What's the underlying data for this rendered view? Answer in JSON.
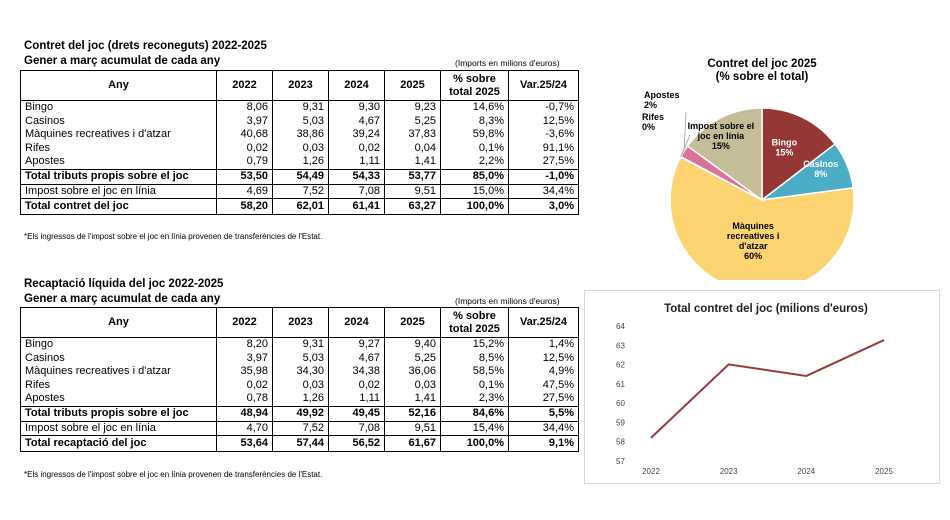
{
  "table1": {
    "title": "Contret del joc (drets reconeguts) 2022-2025",
    "subtitle": "Gener a març acumulat de cada any",
    "units": "(Imports en milions d'euros)",
    "headers": [
      "Any",
      "2022",
      "2023",
      "2024",
      "2025",
      "% sobre total 2025",
      "Var.25/24"
    ],
    "rows": [
      {
        "label": "Bingo",
        "v": [
          "8,06",
          "9,31",
          "9,30",
          "9,23"
        ],
        "pct": "14,6%",
        "var": "-0,7%"
      },
      {
        "label": "Casinos",
        "v": [
          "3,97",
          "5,03",
          "4,67",
          "5,25"
        ],
        "pct": "8,3%",
        "var": "12,5%"
      },
      {
        "label": "Màquines recreatives i d'atzar",
        "v": [
          "40,68",
          "38,86",
          "39,24",
          "37,83"
        ],
        "pct": "59,8%",
        "var": "-3,6%"
      },
      {
        "label": "Rifes",
        "v": [
          "0,02",
          "0,03",
          "0,02",
          "0,04"
        ],
        "pct": "0,1%",
        "var": "91,1%"
      },
      {
        "label": "Apostes",
        "v": [
          "0,79",
          "1,26",
          "1,11",
          "1,41"
        ],
        "pct": "2,2%",
        "var": "27,5%"
      },
      {
        "label": "Total tributs propis sobre el joc",
        "v": [
          "53,50",
          "54,49",
          "54,33",
          "53,77"
        ],
        "pct": "85,0%",
        "var": "-1,0%"
      },
      {
        "label": "Impost sobre el joc en línia",
        "v": [
          "4,69",
          "7,52",
          "7,08",
          "9,51"
        ],
        "pct": "15,0%",
        "var": "34,4%"
      },
      {
        "label": "Total contret del joc",
        "v": [
          "58,20",
          "62,01",
          "61,41",
          "63,27"
        ],
        "pct": "100,0%",
        "var": "3,0%"
      }
    ],
    "note": "*Els ingressos de l'impost sobre el joc en línia provenen de transferències de l'Estat."
  },
  "table2": {
    "title": "Recaptació líquida del joc 2022-2025",
    "subtitle": "Gener a març acumulat de cada any",
    "units": "(Imports en milions d'euros)",
    "headers": [
      "Any",
      "2022",
      "2023",
      "2024",
      "2025",
      "% sobre total 2025",
      "Var.25/24"
    ],
    "rows": [
      {
        "label": "Bingo",
        "v": [
          "8,20",
          "9,31",
          "9,27",
          "9,40"
        ],
        "pct": "15,2%",
        "var": "1,4%"
      },
      {
        "label": "Casinos",
        "v": [
          "3,97",
          "5,03",
          "4,67",
          "5,25"
        ],
        "pct": "8,5%",
        "var": "12,5%"
      },
      {
        "label": "Màquines recreatives i d'atzar",
        "v": [
          "35,98",
          "34,30",
          "34,38",
          "36,06"
        ],
        "pct": "58,5%",
        "var": "4,9%"
      },
      {
        "label": "Rifes",
        "v": [
          "0,02",
          "0,03",
          "0,02",
          "0,03"
        ],
        "pct": "0,1%",
        "var": "47,5%"
      },
      {
        "label": "Apostes",
        "v": [
          "0,78",
          "1,26",
          "1,11",
          "1,41"
        ],
        "pct": "2,3%",
        "var": "27,5%"
      },
      {
        "label": "Total tributs propis sobre el joc",
        "v": [
          "48,94",
          "49,92",
          "49,45",
          "52,16"
        ],
        "pct": "84,6%",
        "var": "5,5%"
      },
      {
        "label": "Impost sobre el joc en línia",
        "v": [
          "4,70",
          "7,52",
          "7,08",
          "9,51"
        ],
        "pct": "15,4%",
        "var": "34,4%"
      },
      {
        "label": "Total recaptació del joc",
        "v": [
          "53,64",
          "57,44",
          "56,52",
          "61,67"
        ],
        "pct": "100,0%",
        "var": "9,1%"
      }
    ],
    "note": "*Els ingressos de l'impost sobre el joc en línia provenen de transferències de l'Estat."
  },
  "chart_data": [
    {
      "type": "pie",
      "title": "Contret del joc 2025",
      "subtitle": "(% sobre el total)",
      "slices": [
        {
          "label": "Bingo",
          "pct_label": "15%",
          "value": 14.6,
          "color": "#953735"
        },
        {
          "label": "Casinos",
          "pct_label": "8%",
          "value": 8.3,
          "color": "#4bacc6"
        },
        {
          "label": "Màquines recreatives i d'atzar",
          "pct_label": "60%",
          "value": 59.8,
          "color": "#fcd472"
        },
        {
          "label": "Rifes",
          "pct_label": "0%",
          "value": 0.1,
          "color": "#f2dcdb"
        },
        {
          "label": "Apostes",
          "pct_label": "2%",
          "value": 2.2,
          "color": "#d9739a"
        },
        {
          "label": "Impost sobre el joc en línia",
          "pct_label": "15%",
          "value": 15.0,
          "color": "#c4bd97"
        }
      ]
    },
    {
      "type": "line",
      "title": "Total contret del joc (milions d'euros)",
      "x": [
        "2022",
        "2023",
        "2024",
        "2025"
      ],
      "series": [
        {
          "name": "Total contret del joc",
          "values": [
            58.2,
            62.01,
            61.41,
            63.27
          ],
          "color": "#9b3a38"
        }
      ],
      "ylim": [
        57,
        64
      ],
      "yticks": [
        "57",
        "58",
        "59",
        "60",
        "61",
        "62",
        "63",
        "64"
      ],
      "grid": false
    }
  ]
}
